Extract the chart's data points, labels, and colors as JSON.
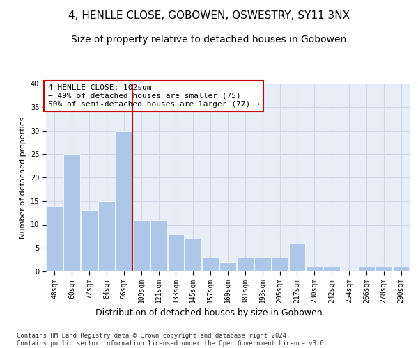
{
  "title": "4, HENLLE CLOSE, GOBOWEN, OSWESTRY, SY11 3NX",
  "subtitle": "Size of property relative to detached houses in Gobowen",
  "xlabel": "Distribution of detached houses by size in Gobowen",
  "ylabel": "Number of detached properties",
  "categories": [
    "48sqm",
    "60sqm",
    "72sqm",
    "84sqm",
    "96sqm",
    "109sqm",
    "121sqm",
    "133sqm",
    "145sqm",
    "157sqm",
    "169sqm",
    "181sqm",
    "193sqm",
    "205sqm",
    "217sqm",
    "230sqm",
    "242sqm",
    "254sqm",
    "266sqm",
    "278sqm",
    "290sqm"
  ],
  "values": [
    14,
    25,
    13,
    15,
    30,
    11,
    11,
    8,
    7,
    3,
    2,
    3,
    3,
    3,
    6,
    1,
    1,
    0,
    1,
    1,
    1
  ],
  "bar_color": "#aec6e8",
  "bar_edge_color": "#ffffff",
  "vline_x": 4.5,
  "vline_color": "#cc0000",
  "annotation_text": "4 HENLLE CLOSE: 102sqm\n← 49% of detached houses are smaller (75)\n50% of semi-detached houses are larger (77) →",
  "annotation_box_color": "#ffffff",
  "annotation_box_edge_color": "#cc0000",
  "ylim": [
    0,
    40
  ],
  "yticks": [
    0,
    5,
    10,
    15,
    20,
    25,
    30,
    35,
    40
  ],
  "grid_color": "#d0d8e8",
  "bg_color": "#e8eef8",
  "footer": "Contains HM Land Registry data © Crown copyright and database right 2024.\nContains public sector information licensed under the Open Government Licence v3.0.",
  "title_fontsize": 11,
  "subtitle_fontsize": 10,
  "xlabel_fontsize": 9,
  "ylabel_fontsize": 8,
  "tick_fontsize": 7,
  "annotation_fontsize": 8,
  "footer_fontsize": 6.5
}
